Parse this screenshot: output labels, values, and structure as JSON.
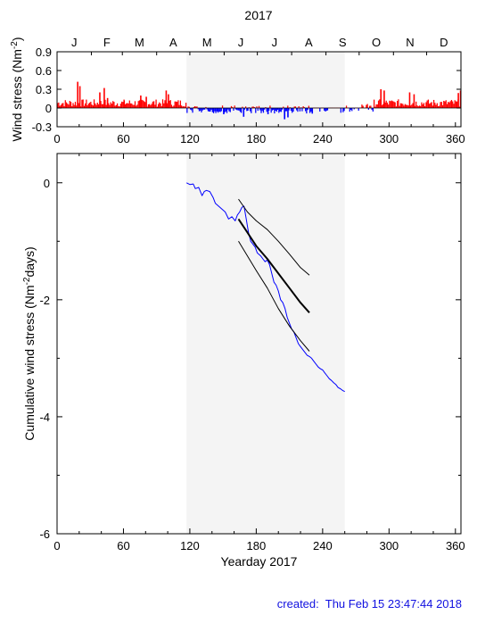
{
  "year_title": "2017",
  "months": [
    "J",
    "F",
    "M",
    "A",
    "M",
    "J",
    "J",
    "A",
    "S",
    "O",
    "N",
    "D"
  ],
  "created_label": "created:",
  "created_time": "Thu Feb 15 23:47:44 2018",
  "colors": {
    "positive_stress": "#ff0000",
    "negative_stress": "#0000ff",
    "shade": "#f4f4f4",
    "cumulative_line": "#0000ff",
    "fit_line": "#000000",
    "created_text": "#1010e0"
  },
  "chart_data": [
    {
      "type": "bar",
      "ylabel": "Wind stress (Nm",
      "ylabel_sup": "-2",
      "ylabel_close": ")",
      "xlim": [
        0,
        365
      ],
      "ylim": [
        -0.3,
        0.9
      ],
      "xticks": [
        0,
        60,
        120,
        180,
        240,
        300,
        360
      ],
      "yticks": [
        -0.3,
        0,
        0.3,
        0.6,
        0.9
      ],
      "ytick_labels": [
        "-0.3",
        "0",
        "0.3",
        "0.6",
        "0.9"
      ],
      "shaded_range": [
        117,
        260
      ],
      "spikes": [
        {
          "x": 18,
          "y": 0.42
        },
        {
          "x": 20,
          "y": 0.35
        },
        {
          "x": 38,
          "y": 0.25
        },
        {
          "x": 42,
          "y": 0.32
        },
        {
          "x": 45,
          "y": 0.16
        },
        {
          "x": 60,
          "y": 0.12
        },
        {
          "x": 75,
          "y": 0.2
        },
        {
          "x": 80,
          "y": 0.18
        },
        {
          "x": 98,
          "y": 0.28
        },
        {
          "x": 100,
          "y": 0.22
        },
        {
          "x": 150,
          "y": -0.1
        },
        {
          "x": 168,
          "y": -0.14
        },
        {
          "x": 190,
          "y": -0.1
        },
        {
          "x": 205,
          "y": -0.18
        },
        {
          "x": 208,
          "y": -0.15
        },
        {
          "x": 230,
          "y": -0.09
        },
        {
          "x": 292,
          "y": 0.3
        },
        {
          "x": 295,
          "y": 0.28
        },
        {
          "x": 318,
          "y": 0.25
        },
        {
          "x": 322,
          "y": 0.22
        },
        {
          "x": 362,
          "y": 0.24
        },
        {
          "x": 364,
          "y": 0.28
        }
      ]
    },
    {
      "type": "line",
      "xlabel": "Yearday 2017",
      "ylabel": "Cumulative wind stress (Nm",
      "ylabel_sup": "-2",
      "ylabel_close": "days)",
      "xlim": [
        0,
        365
      ],
      "ylim": [
        -6,
        0.5
      ],
      "xticks": [
        0,
        60,
        120,
        180,
        240,
        300,
        360
      ],
      "yticks": [
        -6,
        -4,
        -2,
        0
      ],
      "ytick_labels": [
        "-6",
        "-4",
        "-2",
        "0"
      ],
      "shaded_range": [
        117,
        260
      ],
      "series": [
        {
          "style": "thin-blue",
          "x": [
            117,
            120,
            123,
            125,
            128,
            131,
            133,
            135,
            138,
            141,
            143,
            146,
            149,
            152,
            155,
            158,
            161,
            163,
            165,
            167,
            169,
            171,
            173,
            175,
            177,
            179,
            181,
            184,
            186,
            188,
            190,
            192,
            194,
            196,
            198,
            200,
            202,
            204,
            206,
            208,
            210,
            212,
            214,
            216,
            218,
            220,
            222,
            224,
            226,
            228,
            230,
            232,
            234,
            236,
            238,
            240,
            242,
            244,
            246,
            248,
            250,
            252,
            254,
            256,
            258,
            260
          ],
          "y": [
            0.0,
            -0.03,
            -0.02,
            -0.1,
            -0.08,
            -0.22,
            -0.15,
            -0.13,
            -0.15,
            -0.25,
            -0.35,
            -0.4,
            -0.45,
            -0.5,
            -0.62,
            -0.58,
            -0.65,
            -0.55,
            -0.5,
            -0.42,
            -0.4,
            -0.62,
            -0.85,
            -1.0,
            -1.05,
            -1.1,
            -1.2,
            -1.25,
            -1.3,
            -1.35,
            -1.32,
            -1.4,
            -1.55,
            -1.7,
            -1.75,
            -1.85,
            -2.0,
            -2.05,
            -2.15,
            -2.3,
            -2.4,
            -2.5,
            -2.55,
            -2.65,
            -2.75,
            -2.8,
            -2.85,
            -2.9,
            -2.95,
            -2.97,
            -3.0,
            -3.05,
            -3.1,
            -3.15,
            -3.18,
            -3.2,
            -3.25,
            -3.3,
            -3.35,
            -3.38,
            -3.42,
            -3.45,
            -3.5,
            -3.52,
            -3.55,
            -3.57
          ]
        },
        {
          "style": "thick-black",
          "x": [
            164,
            172,
            180,
            190,
            200,
            210,
            220,
            228
          ],
          "y": [
            -0.62,
            -0.85,
            -1.08,
            -1.3,
            -1.55,
            -1.8,
            -2.05,
            -2.22
          ]
        },
        {
          "style": "thin-black",
          "x": [
            164,
            172,
            180,
            190,
            200,
            210,
            220,
            228
          ],
          "y": [
            -0.28,
            -0.5,
            -0.65,
            -0.8,
            -1.0,
            -1.22,
            -1.45,
            -1.58
          ]
        },
        {
          "style": "thin-black",
          "x": [
            164,
            172,
            180,
            190,
            200,
            210,
            220,
            228
          ],
          "y": [
            -1.0,
            -1.25,
            -1.5,
            -1.8,
            -2.15,
            -2.45,
            -2.7,
            -2.88
          ]
        }
      ]
    }
  ]
}
